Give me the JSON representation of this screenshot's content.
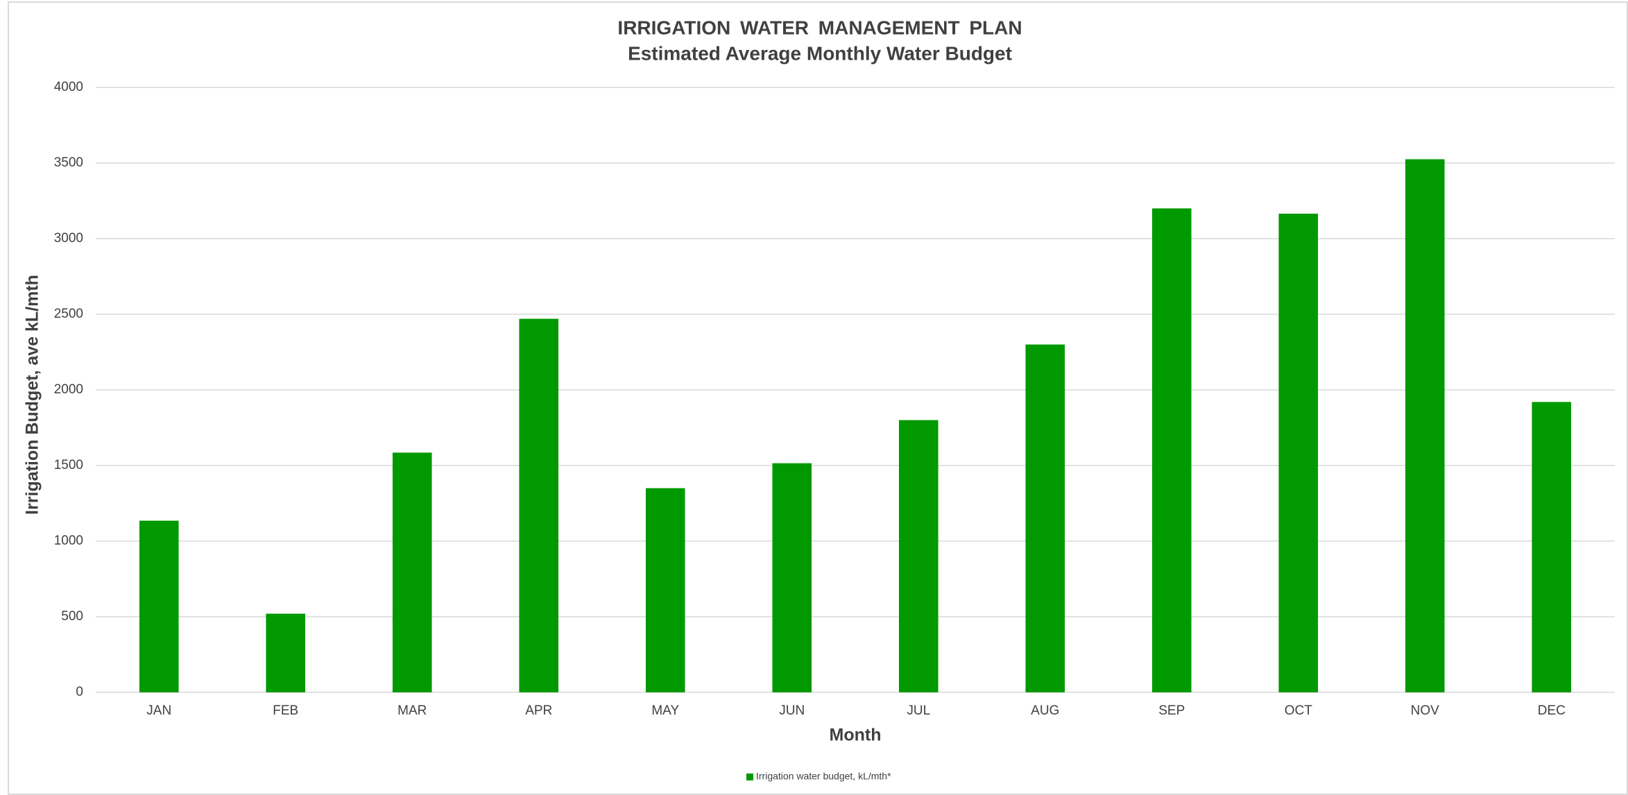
{
  "chart_data": {
    "type": "bar",
    "title": "IRRIGATION WATER MANAGEMENT PLAN",
    "subtitle": "Estimated Average Monthly Water Budget",
    "x_label": "Month",
    "y_label": "Irrigation Budget, ave kL/mth",
    "categories": [
      "JAN",
      "FEB",
      "MAR",
      "APR",
      "MAY",
      "JUN",
      "JUL",
      "AUG",
      "SEP",
      "OCT",
      "NOV",
      "DEC"
    ],
    "series": [
      {
        "name": "Irrigation water budget, kL/mth*",
        "color": "#009900",
        "values": [
          1135,
          520,
          1585,
          2470,
          1350,
          1515,
          1800,
          2300,
          3200,
          3165,
          3525,
          1920
        ]
      }
    ],
    "ylim": [
      0,
      4000
    ],
    "yticks": [
      0,
      500,
      1000,
      1500,
      2000,
      2500,
      3000,
      3500,
      4000
    ],
    "grid": true,
    "legend": "bottom"
  }
}
